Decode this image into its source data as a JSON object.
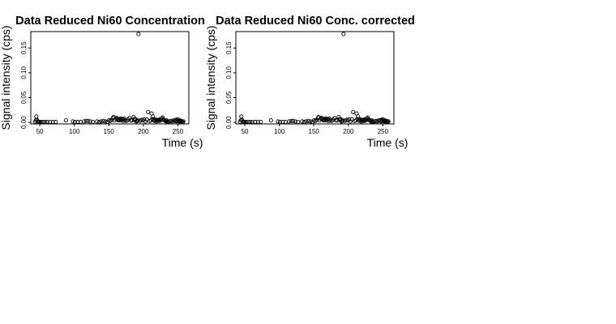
{
  "chart_data": [
    {
      "type": "scatter",
      "title": "Data Reduced Ni60 Concentration",
      "xlabel": "Time (s)",
      "ylabel": "Signal intensity (cps)",
      "xlim": [
        37,
        266
      ],
      "ylim": [
        -0.003,
        0.183
      ],
      "xticks": [
        50,
        100,
        150,
        200,
        250
      ],
      "yticks": [
        0.0,
        0.05,
        0.1,
        0.15
      ],
      "xtick_labels": [
        "50",
        "100",
        "150",
        "200",
        "250"
      ],
      "ytick_labels": [
        "0.00",
        "0.05",
        "0.10",
        "0.15"
      ],
      "grid": false,
      "legend": "none",
      "x": [
        43,
        44,
        45,
        46,
        47,
        48,
        49,
        50,
        52,
        55,
        58,
        61,
        65,
        69,
        73,
        88,
        98,
        101,
        105,
        109,
        114,
        117,
        120,
        123,
        127,
        133,
        136,
        139,
        142,
        145,
        148,
        150,
        152,
        154,
        156,
        157,
        158,
        160,
        161,
        162,
        163,
        164,
        165,
        166,
        167,
        168,
        169,
        170,
        171,
        172,
        173,
        174,
        176,
        178,
        180,
        182,
        184,
        186,
        187,
        188,
        189,
        190,
        191,
        192,
        193,
        195,
        197,
        199,
        201,
        203,
        205,
        207,
        209,
        211,
        212,
        213,
        214,
        215,
        216,
        217,
        218,
        219,
        220,
        221,
        222,
        223,
        224,
        225,
        226,
        227,
        228,
        229,
        230,
        231,
        232,
        233,
        234,
        235,
        236,
        238,
        240,
        242,
        244,
        246,
        247,
        248,
        249,
        250,
        251,
        252,
        253,
        254,
        255,
        256,
        257,
        258
      ],
      "y": [
        0.001,
        0.004,
        0.012,
        0.005,
        0.002,
        0.001,
        0.001,
        0.001,
        0.001,
        0.001,
        0.001,
        0.001,
        0.001,
        0.001,
        0.001,
        0.004,
        0.002,
        0.001,
        0.001,
        0.001,
        0.002,
        0.003,
        0.003,
        0.002,
        0.001,
        0.002,
        0.001,
        0.002,
        0.003,
        0.002,
        0.001,
        0.004,
        0.003,
        0.005,
        0.009,
        0.011,
        0.004,
        0.007,
        0.009,
        0.008,
        0.006,
        0.004,
        0.005,
        0.006,
        0.008,
        0.004,
        0.007,
        0.006,
        0.003,
        0.008,
        0.005,
        0.004,
        0.003,
        0.006,
        0.009,
        0.004,
        0.004,
        0.011,
        0.007,
        0.005,
        0.006,
        0.002,
        0.003,
        0.004,
        0.178,
        0.003,
        0.005,
        0.004,
        0.006,
        0.002,
        0.006,
        0.021,
        0.003,
        0.004,
        0.018,
        0.007,
        0.012,
        0.005,
        0.003,
        0.006,
        0.004,
        0.002,
        0.005,
        0.004,
        0.005,
        0.003,
        0.006,
        0.004,
        0.005,
        0.008,
        0.01,
        0.006,
        0.005,
        0.004,
        0.003,
        0.002,
        0.004,
        0.002,
        0.001,
        0.002,
        0.003,
        0.002,
        0.004,
        0.003,
        0.005,
        0.002,
        0.004,
        0.006,
        0.003,
        0.002,
        0.004,
        0.002,
        0.003,
        0.002,
        0.001,
        0.002
      ]
    },
    {
      "type": "scatter",
      "title": "Data Reduced Ni60 Conc. corrected",
      "xlabel": "Time (s)",
      "ylabel": "Signal intensity (cps)",
      "xlim": [
        37,
        266
      ],
      "ylim": [
        -0.003,
        0.183
      ],
      "xticks": [
        50,
        100,
        150,
        200,
        250
      ],
      "yticks": [
        0.0,
        0.05,
        0.1,
        0.15
      ],
      "xtick_labels": [
        "50",
        "100",
        "150",
        "200",
        "250"
      ],
      "ytick_labels": [
        "0.00",
        "0.05",
        "0.10",
        "0.15"
      ],
      "grid": false,
      "legend": "none",
      "x": [
        43,
        44,
        45,
        46,
        47,
        48,
        49,
        50,
        52,
        55,
        58,
        61,
        65,
        69,
        73,
        88,
        98,
        101,
        105,
        109,
        114,
        117,
        120,
        123,
        127,
        133,
        136,
        139,
        142,
        145,
        148,
        150,
        152,
        154,
        156,
        157,
        158,
        160,
        161,
        162,
        163,
        164,
        165,
        166,
        167,
        168,
        169,
        170,
        171,
        172,
        173,
        174,
        176,
        178,
        180,
        182,
        184,
        186,
        187,
        188,
        189,
        190,
        191,
        192,
        193,
        195,
        197,
        199,
        201,
        203,
        205,
        207,
        209,
        211,
        212,
        213,
        214,
        215,
        216,
        217,
        218,
        219,
        220,
        221,
        222,
        223,
        224,
        225,
        226,
        227,
        228,
        229,
        230,
        231,
        232,
        233,
        234,
        235,
        236,
        238,
        240,
        242,
        244,
        246,
        247,
        248,
        249,
        250,
        251,
        252,
        253,
        254,
        255,
        256,
        257,
        258
      ],
      "y": [
        0.001,
        0.004,
        0.012,
        0.005,
        0.002,
        0.001,
        0.001,
        0.001,
        0.001,
        0.001,
        0.001,
        0.001,
        0.001,
        0.001,
        0.001,
        0.004,
        0.002,
        0.001,
        0.001,
        0.001,
        0.002,
        0.003,
        0.003,
        0.002,
        0.001,
        0.002,
        0.001,
        0.002,
        0.003,
        0.002,
        0.001,
        0.004,
        0.003,
        0.005,
        0.009,
        0.011,
        0.004,
        0.007,
        0.009,
        0.008,
        0.006,
        0.004,
        0.005,
        0.006,
        0.008,
        0.004,
        0.007,
        0.006,
        0.003,
        0.008,
        0.005,
        0.004,
        0.003,
        0.006,
        0.009,
        0.004,
        0.004,
        0.011,
        0.007,
        0.005,
        0.006,
        0.002,
        0.003,
        0.004,
        0.178,
        0.003,
        0.005,
        0.004,
        0.006,
        0.002,
        0.006,
        0.021,
        0.003,
        0.004,
        0.018,
        0.007,
        0.012,
        0.005,
        0.003,
        0.006,
        0.004,
        0.002,
        0.005,
        0.004,
        0.005,
        0.003,
        0.006,
        0.004,
        0.005,
        0.008,
        0.01,
        0.006,
        0.005,
        0.004,
        0.003,
        0.002,
        0.004,
        0.002,
        0.001,
        0.002,
        0.003,
        0.002,
        0.004,
        0.003,
        0.005,
        0.002,
        0.004,
        0.006,
        0.003,
        0.002,
        0.004,
        0.002,
        0.003,
        0.002,
        0.001,
        0.002
      ]
    }
  ]
}
